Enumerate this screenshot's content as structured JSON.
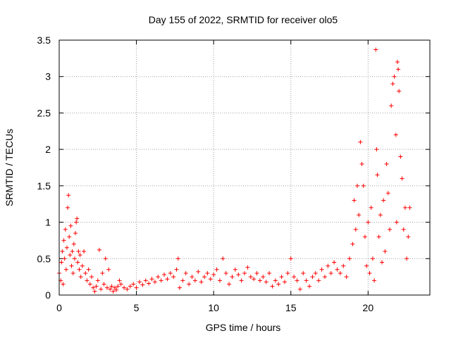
{
  "chart_data": {
    "type": "scatter",
    "title": "Day 155 of 2022, SRMTID for receiver olo5",
    "xlabel": "GPS time / hours",
    "ylabel": "SRMTID / TECUs",
    "xlim": [
      0,
      24
    ],
    "ylim": [
      0,
      3.5
    ],
    "x_ticks": [
      0,
      5,
      10,
      15,
      20
    ],
    "x_tick_labels": [
      "0",
      "5",
      "10",
      "15",
      "20"
    ],
    "y_ticks": [
      0,
      0.5,
      1,
      1.5,
      2,
      2.5,
      3,
      3.5
    ],
    "y_tick_labels": [
      "0",
      "0.5",
      "1",
      "1.5",
      "2",
      "2.5",
      "3",
      "3.5"
    ],
    "grid": true,
    "marker": "+",
    "color": "#ff0000",
    "series": [
      {
        "name": "SRMTID",
        "points": [
          [
            0.0,
            0.3
          ],
          [
            0.1,
            0.2
          ],
          [
            0.15,
            0.45
          ],
          [
            0.2,
            0.6
          ],
          [
            0.25,
            0.15
          ],
          [
            0.3,
            0.75
          ],
          [
            0.35,
            0.5
          ],
          [
            0.4,
            0.9
          ],
          [
            0.45,
            0.35
          ],
          [
            0.5,
            0.65
          ],
          [
            0.55,
            1.2
          ],
          [
            0.6,
            1.37
          ],
          [
            0.65,
            0.8
          ],
          [
            0.7,
            0.55
          ],
          [
            0.75,
            0.95
          ],
          [
            0.8,
            0.4
          ],
          [
            0.85,
            0.6
          ],
          [
            0.9,
            0.3
          ],
          [
            0.95,
            0.7
          ],
          [
            1.0,
            0.5
          ],
          [
            1.05,
            0.85
          ],
          [
            1.1,
            1.0
          ],
          [
            1.15,
            1.05
          ],
          [
            1.2,
            0.45
          ],
          [
            1.25,
            0.6
          ],
          [
            1.3,
            0.35
          ],
          [
            1.35,
            0.55
          ],
          [
            1.4,
            0.25
          ],
          [
            1.5,
            0.4
          ],
          [
            1.6,
            0.6
          ],
          [
            1.7,
            0.3
          ],
          [
            1.8,
            0.2
          ],
          [
            1.9,
            0.35
          ],
          [
            2.0,
            0.15
          ],
          [
            2.1,
            0.25
          ],
          [
            2.2,
            0.1
          ],
          [
            2.3,
            0.05
          ],
          [
            2.4,
            0.12
          ],
          [
            2.5,
            0.2
          ],
          [
            2.6,
            0.62
          ],
          [
            2.7,
            0.08
          ],
          [
            2.8,
            0.3
          ],
          [
            2.9,
            0.15
          ],
          [
            3.0,
            0.5
          ],
          [
            3.1,
            0.1
          ],
          [
            3.2,
            0.35
          ],
          [
            3.3,
            0.08
          ],
          [
            3.4,
            0.12
          ],
          [
            3.5,
            0.05
          ],
          [
            3.6,
            0.1
          ],
          [
            3.7,
            0.07
          ],
          [
            3.8,
            0.12
          ],
          [
            3.9,
            0.2
          ],
          [
            4.0,
            0.15
          ],
          [
            4.2,
            0.1
          ],
          [
            4.4,
            0.08
          ],
          [
            4.6,
            0.12
          ],
          [
            4.8,
            0.15
          ],
          [
            5.0,
            0.1
          ],
          [
            5.2,
            0.18
          ],
          [
            5.4,
            0.14
          ],
          [
            5.6,
            0.2
          ],
          [
            5.8,
            0.16
          ],
          [
            6.0,
            0.22
          ],
          [
            6.2,
            0.18
          ],
          [
            6.4,
            0.25
          ],
          [
            6.6,
            0.2
          ],
          [
            6.8,
            0.28
          ],
          [
            7.0,
            0.22
          ],
          [
            7.2,
            0.3
          ],
          [
            7.4,
            0.25
          ],
          [
            7.6,
            0.35
          ],
          [
            7.7,
            0.5
          ],
          [
            7.8,
            0.1
          ],
          [
            8.0,
            0.2
          ],
          [
            8.2,
            0.3
          ],
          [
            8.4,
            0.15
          ],
          [
            8.6,
            0.25
          ],
          [
            8.8,
            0.2
          ],
          [
            9.0,
            0.32
          ],
          [
            9.2,
            0.18
          ],
          [
            9.4,
            0.25
          ],
          [
            9.6,
            0.3
          ],
          [
            9.8,
            0.22
          ],
          [
            10.0,
            0.28
          ],
          [
            10.2,
            0.35
          ],
          [
            10.4,
            0.2
          ],
          [
            10.6,
            0.5
          ],
          [
            10.8,
            0.3
          ],
          [
            11.0,
            0.15
          ],
          [
            11.2,
            0.25
          ],
          [
            11.4,
            0.35
          ],
          [
            11.6,
            0.28
          ],
          [
            11.8,
            0.2
          ],
          [
            12.0,
            0.3
          ],
          [
            12.2,
            0.38
          ],
          [
            12.4,
            0.25
          ],
          [
            12.6,
            0.22
          ],
          [
            12.8,
            0.3
          ],
          [
            13.0,
            0.2
          ],
          [
            13.2,
            0.25
          ],
          [
            13.4,
            0.18
          ],
          [
            13.6,
            0.3
          ],
          [
            13.8,
            0.12
          ],
          [
            14.0,
            0.2
          ],
          [
            14.2,
            0.15
          ],
          [
            14.4,
            0.25
          ],
          [
            14.6,
            0.18
          ],
          [
            14.8,
            0.3
          ],
          [
            15.0,
            0.5
          ],
          [
            15.2,
            0.25
          ],
          [
            15.4,
            0.2
          ],
          [
            15.6,
            0.08
          ],
          [
            15.8,
            0.3
          ],
          [
            16.0,
            0.2
          ],
          [
            16.2,
            0.12
          ],
          [
            16.4,
            0.25
          ],
          [
            16.6,
            0.3
          ],
          [
            16.8,
            0.2
          ],
          [
            17.0,
            0.35
          ],
          [
            17.2,
            0.25
          ],
          [
            17.4,
            0.4
          ],
          [
            17.6,
            0.3
          ],
          [
            17.8,
            0.45
          ],
          [
            18.0,
            0.35
          ],
          [
            18.2,
            0.3
          ],
          [
            18.4,
            0.4
          ],
          [
            18.6,
            0.25
          ],
          [
            18.8,
            0.5
          ],
          [
            19.0,
            0.7
          ],
          [
            19.1,
            1.3
          ],
          [
            19.2,
            0.9
          ],
          [
            19.3,
            1.5
          ],
          [
            19.4,
            1.1
          ],
          [
            19.5,
            2.1
          ],
          [
            19.6,
            1.8
          ],
          [
            19.7,
            1.5
          ],
          [
            19.8,
            0.8
          ],
          [
            19.9,
            0.4
          ],
          [
            20.0,
            1.0
          ],
          [
            20.1,
            0.3
          ],
          [
            20.2,
            1.2
          ],
          [
            20.3,
            0.5
          ],
          [
            20.4,
            0.2
          ],
          [
            20.5,
            3.37
          ],
          [
            20.55,
            2.0
          ],
          [
            20.6,
            1.65
          ],
          [
            20.7,
            0.8
          ],
          [
            20.8,
            1.1
          ],
          [
            20.9,
            0.45
          ],
          [
            21.0,
            1.3
          ],
          [
            21.1,
            0.6
          ],
          [
            21.2,
            1.8
          ],
          [
            21.3,
            1.4
          ],
          [
            21.4,
            0.9
          ],
          [
            21.5,
            2.6
          ],
          [
            21.6,
            2.9
          ],
          [
            21.7,
            3.0
          ],
          [
            21.8,
            2.2
          ],
          [
            21.85,
            1.0
          ],
          [
            21.9,
            3.2
          ],
          [
            21.95,
            3.1
          ],
          [
            22.0,
            2.8
          ],
          [
            22.1,
            1.9
          ],
          [
            22.2,
            1.6
          ],
          [
            22.3,
            0.9
          ],
          [
            22.4,
            1.2
          ],
          [
            22.5,
            0.5
          ],
          [
            22.6,
            0.8
          ],
          [
            22.7,
            1.2
          ]
        ]
      }
    ]
  }
}
